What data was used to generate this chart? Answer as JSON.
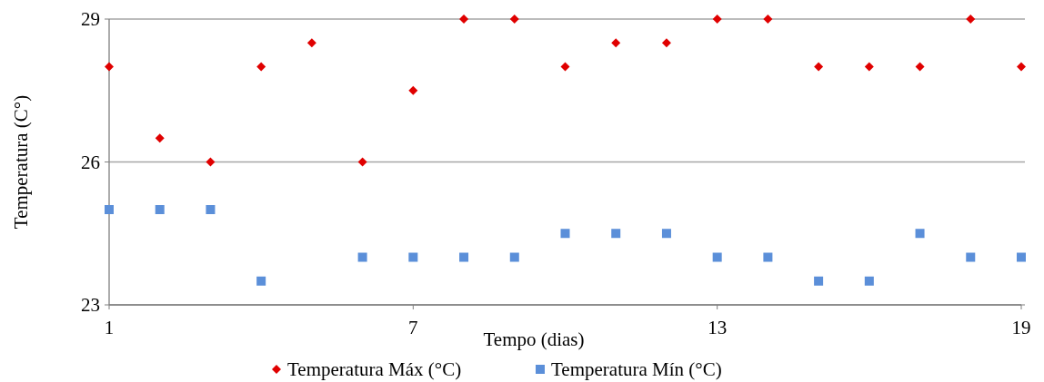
{
  "chart_data": {
    "type": "scatter",
    "xlabel": "Tempo (dias)",
    "ylabel": "Temperatura (C°)",
    "x": [
      1,
      2,
      3,
      4,
      5,
      6,
      7,
      8,
      9,
      10,
      11,
      12,
      13,
      14,
      15,
      16,
      17,
      18,
      19
    ],
    "series": [
      {
        "name": "Temperatura Máx (°C)",
        "color": "#e00000",
        "marker": "diamond",
        "values": [
          28,
          26.5,
          26,
          28,
          28.5,
          26,
          27.5,
          29,
          29,
          28,
          28.5,
          28.5,
          29,
          29,
          28,
          28,
          28,
          29,
          28
        ]
      },
      {
        "name": "Temperatura Mín (°C)",
        "color": "#5b8fd9",
        "marker": "square",
        "values": [
          25,
          25,
          25,
          23.5,
          null,
          24,
          24,
          24,
          24,
          24.5,
          24.5,
          24.5,
          24,
          24,
          23.5,
          23.5,
          24.5,
          24,
          24
        ]
      }
    ],
    "xlim": [
      1,
      19
    ],
    "xticks": [
      1,
      7,
      13,
      19
    ],
    "ylim": [
      23,
      29
    ],
    "yticks": [
      23,
      26,
      29
    ],
    "grid": "y",
    "legend": "bottom"
  }
}
